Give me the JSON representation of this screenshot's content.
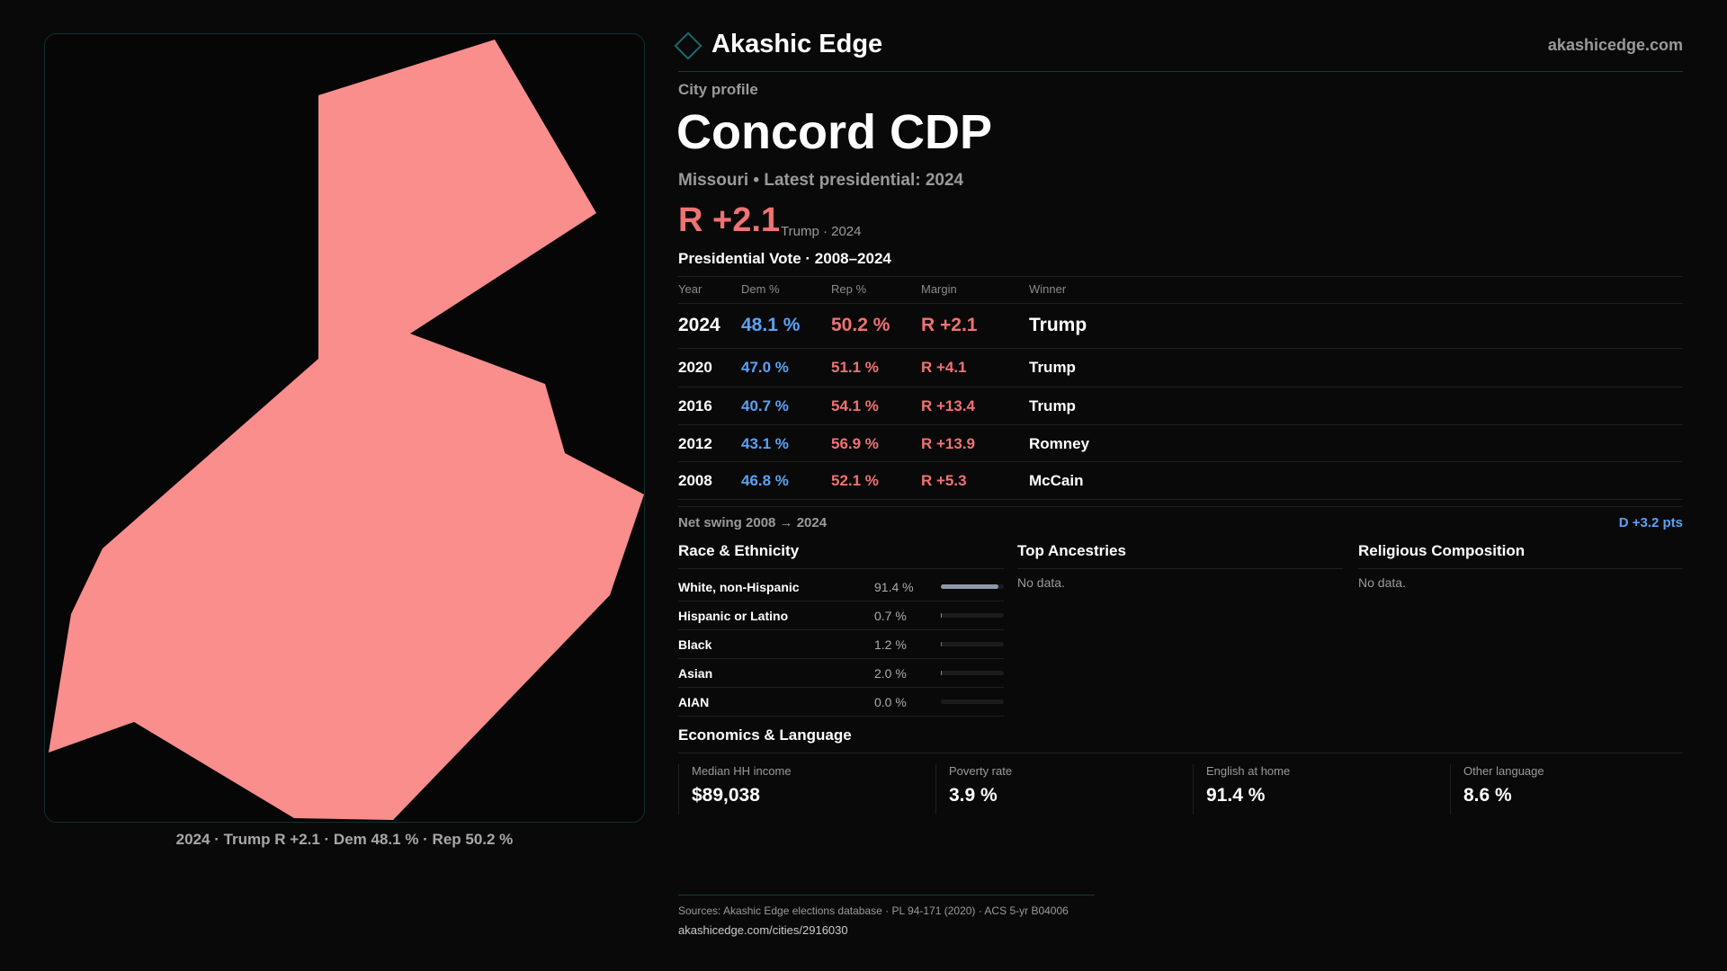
{
  "brand": {
    "name": "Akashic Edge",
    "site": "akashicedge.com"
  },
  "header": {
    "eyebrow": "City profile",
    "title": "Concord CDP",
    "subtitle": "Missouri • Latest presidential: 2024",
    "margin": "R +2.1",
    "margin_note": "Trump · 2024"
  },
  "map": {
    "caption": "2024 · Trump R +2.1 · Dem 48.1 % · Rep 50.2 %",
    "fill": "#f98e8c"
  },
  "vote": {
    "title": "Presidential Vote · 2008–2024",
    "headers": [
      "Year",
      "Dem %",
      "Rep %",
      "Margin",
      "Winner"
    ],
    "rows": [
      {
        "year": "2024",
        "dem": "48.1 %",
        "rep": "50.2 %",
        "margin": "R +2.1",
        "winner": "Trump"
      },
      {
        "year": "2020",
        "dem": "47.0 %",
        "rep": "51.1 %",
        "margin": "R +4.1",
        "winner": "Trump"
      },
      {
        "year": "2016",
        "dem": "40.7 %",
        "rep": "54.1 %",
        "margin": "R +13.4",
        "winner": "Trump"
      },
      {
        "year": "2012",
        "dem": "43.1 %",
        "rep": "56.9 %",
        "margin": "R +13.9",
        "winner": "Romney"
      },
      {
        "year": "2008",
        "dem": "46.8 %",
        "rep": "52.1 %",
        "margin": "R +5.3",
        "winner": "McCain"
      }
    ],
    "swing_label": "Net swing 2008 → 2024",
    "swing_value": "D +3.2 pts"
  },
  "race": {
    "title": "Race & Ethnicity",
    "rows": [
      {
        "name": "White, non-Hispanic",
        "pct": "91.4 %",
        "value": 91.4,
        "color": "#8e97ab"
      },
      {
        "name": "Hispanic or Latino",
        "pct": "0.7 %",
        "value": 0.7,
        "color": "#c0843c"
      },
      {
        "name": "Black",
        "pct": "1.2 %",
        "value": 1.2,
        "color": "#7c5cf0"
      },
      {
        "name": "Asian",
        "pct": "2.0 %",
        "value": 2.0,
        "color": "#2fb98a"
      },
      {
        "name": "AIAN",
        "pct": "0.0 %",
        "value": 0.0,
        "color": "#888888"
      }
    ]
  },
  "ancestry": {
    "title": "Top Ancestries",
    "empty": "No data."
  },
  "religion": {
    "title": "Religious Composition",
    "empty": "No data."
  },
  "econ": {
    "title": "Economics & Language",
    "stats": [
      {
        "label": "Median HH income",
        "value": "$89,038"
      },
      {
        "label": "Poverty rate",
        "value": "3.9 %"
      },
      {
        "label": "English at home",
        "value": "91.4 %"
      },
      {
        "label": "Other language",
        "value": "8.6 %"
      }
    ]
  },
  "footer": {
    "sources": "Sources: Akashic Edge elections database · PL 94-171 (2020) · ACS 5-yr B04006",
    "url": "akashicedge.com/cities/2916030"
  }
}
